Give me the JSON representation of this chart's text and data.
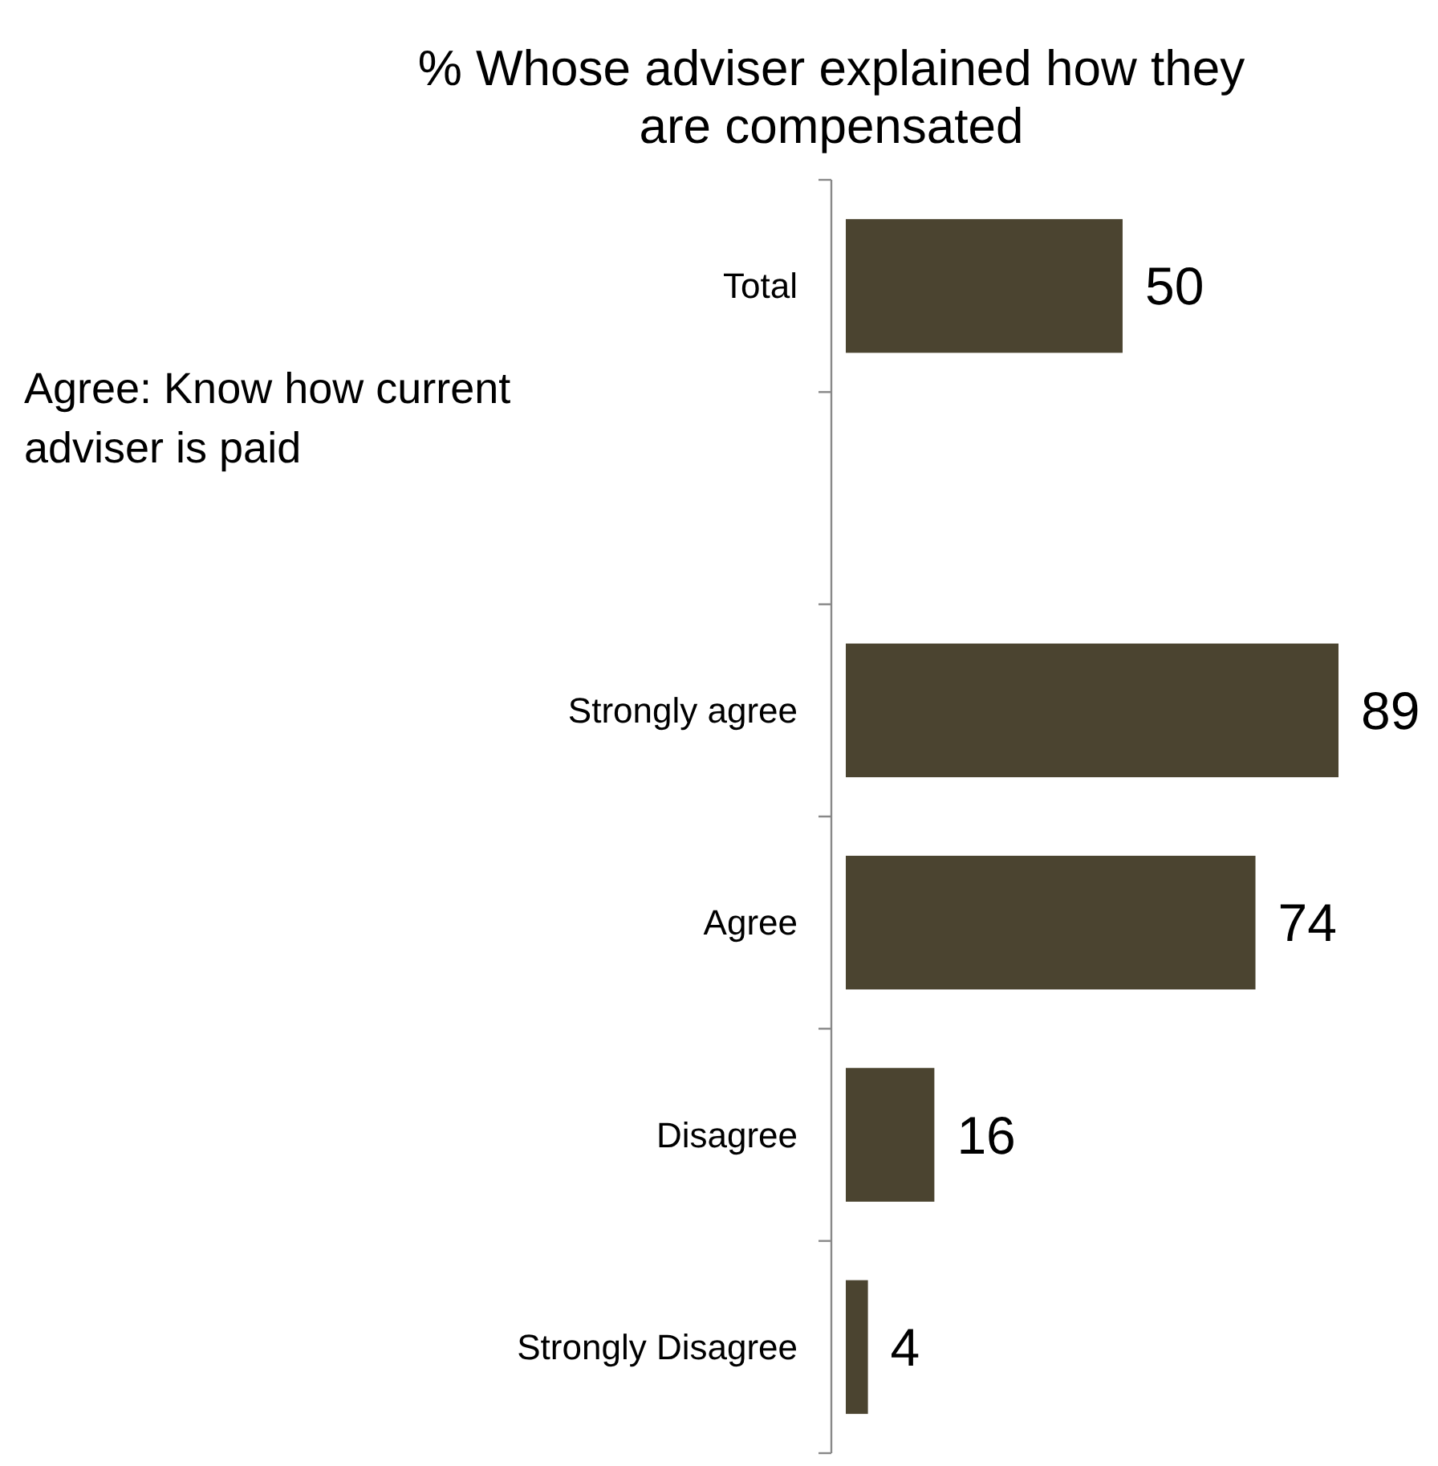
{
  "chart_data": {
    "type": "bar",
    "orientation": "horizontal",
    "title": "% Whose adviser explained how they are compensated",
    "categories": [
      "Total",
      null,
      "Strongly agree",
      "Agree",
      "Disagree",
      "Strongly Disagree"
    ],
    "values": [
      50,
      null,
      89,
      74,
      16,
      4
    ],
    "color": "#4b4430",
    "data_labels": true,
    "grid": false,
    "annotations": [
      "Agree: Know how current adviser is paid"
    ]
  }
}
